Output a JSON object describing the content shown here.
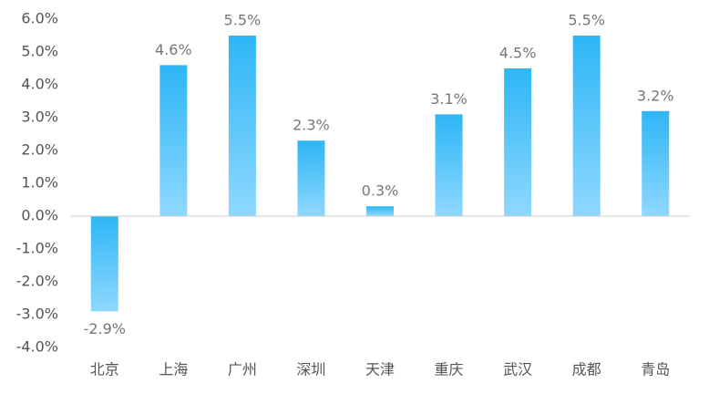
{
  "chart_data": {
    "type": "bar",
    "categories": [
      "北京",
      "上海",
      "广州",
      "深圳",
      "天津",
      "重庆",
      "武汉",
      "成都",
      "青岛"
    ],
    "values": [
      -2.9,
      4.6,
      5.5,
      2.3,
      0.3,
      3.1,
      4.5,
      5.5,
      3.2
    ],
    "value_labels": [
      "-2.9%",
      "4.6%",
      "5.5%",
      "2.3%",
      "0.3%",
      "3.1%",
      "4.5%",
      "5.5%",
      "3.2%"
    ],
    "color": "#2db6f6",
    "ylim": [
      -4,
      6
    ],
    "yticks": [
      {
        "value": 6,
        "label": "6.0%"
      },
      {
        "value": 5,
        "label": "5.0%"
      },
      {
        "value": 4,
        "label": "4.0%"
      },
      {
        "value": 3,
        "label": "3.0%"
      },
      {
        "value": 2,
        "label": "2.0%"
      },
      {
        "value": 1,
        "label": "1.0%"
      },
      {
        "value": 0,
        "label": "0.0%"
      },
      {
        "value": -1,
        "label": "-1.0%"
      },
      {
        "value": -2,
        "label": "-2.0%"
      },
      {
        "value": -3,
        "label": "-3.0%"
      },
      {
        "value": -4,
        "label": "-4.0%"
      }
    ],
    "grid": false
  }
}
